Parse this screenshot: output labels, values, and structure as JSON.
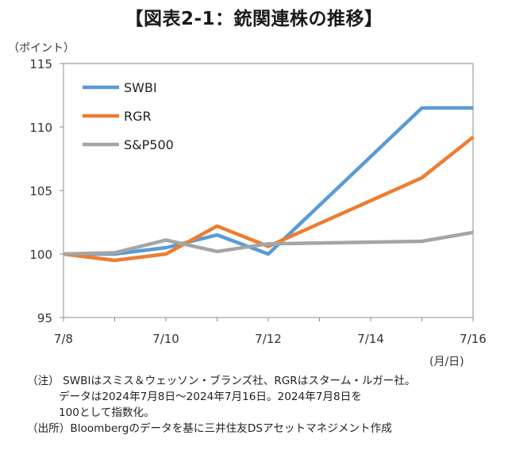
{
  "title": "【図表2-1：銃関連株の推移】",
  "y_unit": "（ポイント）",
  "x_unit": "(月/日)",
  "chart_data": {
    "type": "line",
    "title": "【図表2-1：銃関連株の推移】",
    "xlabel": "",
    "ylabel": "（ポイント）",
    "x_unit": "(月/日)",
    "x": [
      "7/8",
      "7/9",
      "7/10",
      "7/11",
      "7/12",
      "7/13",
      "7/14",
      "7/15",
      "7/16"
    ],
    "x_ticks": [
      "7/8",
      "7/10",
      "7/12",
      "7/14",
      "7/16"
    ],
    "ylim": [
      95,
      115
    ],
    "y_ticks": [
      95,
      100,
      105,
      110,
      115
    ],
    "grid": false,
    "legend_position": "top-left",
    "series": [
      {
        "name": "SWBI",
        "color": "#5b9bd5",
        "values": [
          100.0,
          100.0,
          100.5,
          101.5,
          100.0,
          null,
          null,
          111.5,
          111.5
        ]
      },
      {
        "name": "RGR",
        "color": "#ed7d31",
        "values": [
          100.0,
          99.5,
          100.0,
          102.2,
          100.6,
          null,
          null,
          106.0,
          109.2
        ]
      },
      {
        "name": "S&P500",
        "color": "#a5a5a5",
        "values": [
          100.0,
          100.1,
          101.1,
          100.2,
          100.8,
          null,
          null,
          101.0,
          101.7
        ]
      }
    ]
  },
  "notes": {
    "note_line1": "（注） SWBIはスミス＆ウェッソン・ブランズ社、RGRはスターム・ルガー社。",
    "note_line2": "データは2024年7月8日～2024年7月16日。2024年7月8日を",
    "note_line3": "100として指数化。",
    "source_line": "（出所）Bloombergのデータを基に三井住友DSアセットマネジメント作成"
  }
}
